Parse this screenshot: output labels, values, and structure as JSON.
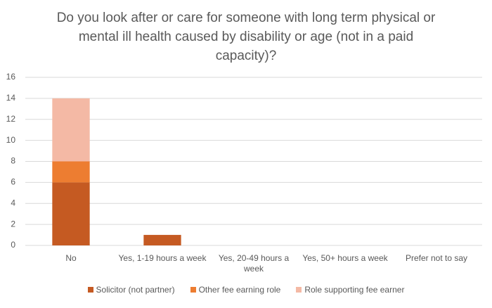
{
  "chart_data": {
    "type": "stacked_bar",
    "title": "Do you look after or care for someone with long term physical or mental ill health caused by disability or age (not in a paid capacity)?",
    "categories": [
      "No",
      "Yes, 1-19 hours a week",
      "Yes, 20-49 hours a week",
      "Yes, 50+ hours a week",
      "Prefer not to say"
    ],
    "series": [
      {
        "name": "Solicitor (not partner)",
        "color": "#c55a22",
        "values": [
          6,
          1,
          0,
          0,
          0
        ]
      },
      {
        "name": "Other fee earning role",
        "color": "#ed7d31",
        "values": [
          2,
          0,
          0,
          0,
          0
        ]
      },
      {
        "name": "Role supporting fee earner",
        "color": "#f4b9a5",
        "values": [
          6,
          0,
          0,
          0,
          0
        ]
      }
    ],
    "ylim": [
      0,
      16
    ],
    "yticks": [
      0,
      2,
      4,
      6,
      8,
      10,
      12,
      14,
      16
    ],
    "grid": true,
    "legend": "bottom"
  }
}
